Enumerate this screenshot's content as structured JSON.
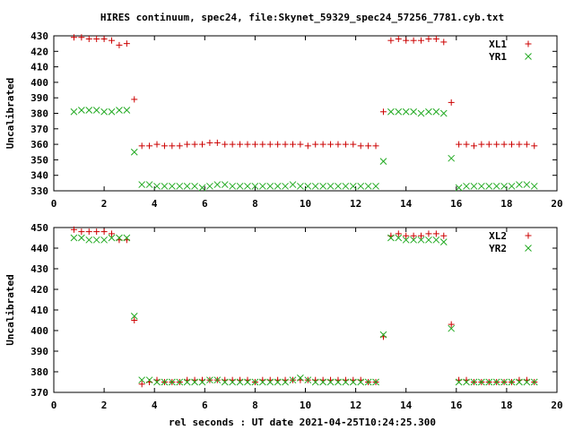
{
  "title": "HIRES continuum, spec24, file:Skynet_59329_spec24_57256_7781.cyb.txt",
  "xlabel": "rel seconds : UT date 2021-04-25T10:24:25.300",
  "colors": {
    "series_a": "#cc0000",
    "series_b": "#22aa22",
    "axes": "#000000"
  },
  "chart_data": [
    {
      "type": "scatter",
      "ylabel": "Uncalibrated",
      "xlim": [
        0,
        20
      ],
      "ylim": [
        330,
        430
      ],
      "xticks": [
        0,
        2,
        4,
        6,
        8,
        10,
        12,
        14,
        16,
        18,
        20
      ],
      "yticks": [
        330,
        340,
        350,
        360,
        370,
        380,
        390,
        400,
        410,
        420,
        430
      ],
      "legend_position": "top-right",
      "series": [
        {
          "name": "XL1",
          "marker": "plus",
          "x": [
            0.8,
            1.1,
            1.4,
            1.7,
            2.0,
            2.3,
            2.6,
            2.9,
            3.2,
            3.5,
            3.8,
            4.1,
            4.4,
            4.7,
            5.0,
            5.3,
            5.6,
            5.9,
            6.2,
            6.5,
            6.8,
            7.1,
            7.4,
            7.7,
            8.0,
            8.3,
            8.6,
            8.9,
            9.2,
            9.5,
            9.8,
            10.1,
            10.4,
            10.7,
            11.0,
            11.3,
            11.6,
            11.9,
            12.2,
            12.5,
            12.8,
            13.1,
            13.4,
            13.7,
            14.0,
            14.3,
            14.6,
            14.9,
            15.2,
            15.5,
            15.8,
            16.1,
            16.4,
            16.7,
            17.0,
            17.3,
            17.6,
            17.9,
            18.2,
            18.5,
            18.8,
            19.1
          ],
          "y": [
            429,
            429,
            428,
            428,
            428,
            427,
            424,
            425,
            389,
            359,
            359,
            360,
            359,
            359,
            359,
            360,
            360,
            360,
            361,
            361,
            360,
            360,
            360,
            360,
            360,
            360,
            360,
            360,
            360,
            360,
            360,
            359,
            360,
            360,
            360,
            360,
            360,
            360,
            359,
            359,
            359,
            381,
            427,
            428,
            427,
            427,
            427,
            428,
            428,
            426,
            387,
            360,
            360,
            359,
            360,
            360,
            360,
            360,
            360,
            360,
            360,
            359
          ]
        },
        {
          "name": "YR1",
          "marker": "cross",
          "x": [
            0.8,
            1.1,
            1.4,
            1.7,
            2.0,
            2.3,
            2.6,
            2.9,
            3.2,
            3.5,
            3.8,
            4.1,
            4.4,
            4.7,
            5.0,
            5.3,
            5.6,
            5.9,
            6.2,
            6.5,
            6.8,
            7.1,
            7.4,
            7.7,
            8.0,
            8.3,
            8.6,
            8.9,
            9.2,
            9.5,
            9.8,
            10.1,
            10.4,
            10.7,
            11.0,
            11.3,
            11.6,
            11.9,
            12.2,
            12.5,
            12.8,
            13.1,
            13.4,
            13.7,
            14.0,
            14.3,
            14.6,
            14.9,
            15.2,
            15.5,
            15.8,
            16.1,
            16.4,
            16.7,
            17.0,
            17.3,
            17.6,
            17.9,
            18.2,
            18.5,
            18.8,
            19.1
          ],
          "y": [
            381,
            382,
            382,
            382,
            381,
            381,
            382,
            382,
            355,
            334,
            334,
            333,
            333,
            333,
            333,
            333,
            333,
            332,
            333,
            334,
            334,
            333,
            333,
            333,
            333,
            333,
            333,
            333,
            333,
            334,
            333,
            333,
            333,
            333,
            333,
            333,
            333,
            333,
            333,
            333,
            333,
            349,
            381,
            381,
            381,
            381,
            380,
            381,
            381,
            380,
            351,
            332,
            333,
            333,
            333,
            333,
            333,
            333,
            333,
            334,
            334,
            333
          ]
        }
      ]
    },
    {
      "type": "scatter",
      "ylabel": "Uncalibrated",
      "xlim": [
        0,
        20
      ],
      "ylim": [
        370,
        450
      ],
      "xticks": [
        0,
        2,
        4,
        6,
        8,
        10,
        12,
        14,
        16,
        18,
        20
      ],
      "yticks": [
        370,
        380,
        390,
        400,
        410,
        420,
        430,
        440,
        450
      ],
      "legend_position": "top-right",
      "series": [
        {
          "name": "XL2",
          "marker": "plus",
          "x": [
            0.8,
            1.1,
            1.4,
            1.7,
            2.0,
            2.3,
            2.6,
            2.9,
            3.2,
            3.5,
            3.8,
            4.1,
            4.4,
            4.7,
            5.0,
            5.3,
            5.6,
            5.9,
            6.2,
            6.5,
            6.8,
            7.1,
            7.4,
            7.7,
            8.0,
            8.3,
            8.6,
            8.9,
            9.2,
            9.5,
            9.8,
            10.1,
            10.4,
            10.7,
            11.0,
            11.3,
            11.6,
            11.9,
            12.2,
            12.5,
            12.8,
            13.1,
            13.4,
            13.7,
            14.0,
            14.3,
            14.6,
            14.9,
            15.2,
            15.5,
            15.8,
            16.1,
            16.4,
            16.7,
            17.0,
            17.3,
            17.6,
            17.9,
            18.2,
            18.5,
            18.8,
            19.1
          ],
          "y": [
            449,
            448,
            448,
            448,
            448,
            447,
            444,
            444,
            405,
            374,
            375,
            376,
            375,
            375,
            375,
            376,
            376,
            376,
            376,
            376,
            376,
            376,
            376,
            376,
            375,
            376,
            376,
            376,
            376,
            376,
            376,
            376,
            376,
            376,
            376,
            376,
            376,
            376,
            376,
            375,
            375,
            397,
            446,
            447,
            446,
            446,
            446,
            447,
            447,
            446,
            403,
            376,
            376,
            375,
            375,
            375,
            375,
            375,
            375,
            376,
            376,
            375
          ]
        },
        {
          "name": "YR2",
          "marker": "cross",
          "x": [
            0.8,
            1.1,
            1.4,
            1.7,
            2.0,
            2.3,
            2.6,
            2.9,
            3.2,
            3.5,
            3.8,
            4.1,
            4.4,
            4.7,
            5.0,
            5.3,
            5.6,
            5.9,
            6.2,
            6.5,
            6.8,
            7.1,
            7.4,
            7.7,
            8.0,
            8.3,
            8.6,
            8.9,
            9.2,
            9.5,
            9.8,
            10.1,
            10.4,
            10.7,
            11.0,
            11.3,
            11.6,
            11.9,
            12.2,
            12.5,
            12.8,
            13.1,
            13.4,
            13.7,
            14.0,
            14.3,
            14.6,
            14.9,
            15.2,
            15.5,
            15.8,
            16.1,
            16.4,
            16.7,
            17.0,
            17.3,
            17.6,
            17.9,
            18.2,
            18.5,
            18.8,
            19.1
          ],
          "y": [
            445,
            445,
            444,
            444,
            444,
            445,
            445,
            445,
            407,
            376,
            376,
            375,
            375,
            375,
            375,
            375,
            375,
            375,
            376,
            376,
            375,
            375,
            375,
            375,
            375,
            375,
            375,
            375,
            375,
            376,
            377,
            376,
            375,
            375,
            375,
            375,
            375,
            375,
            375,
            375,
            375,
            398,
            445,
            445,
            444,
            444,
            444,
            444,
            444,
            443,
            401,
            375,
            375,
            375,
            375,
            375,
            375,
            375,
            375,
            375,
            375,
            375
          ]
        }
      ]
    }
  ]
}
